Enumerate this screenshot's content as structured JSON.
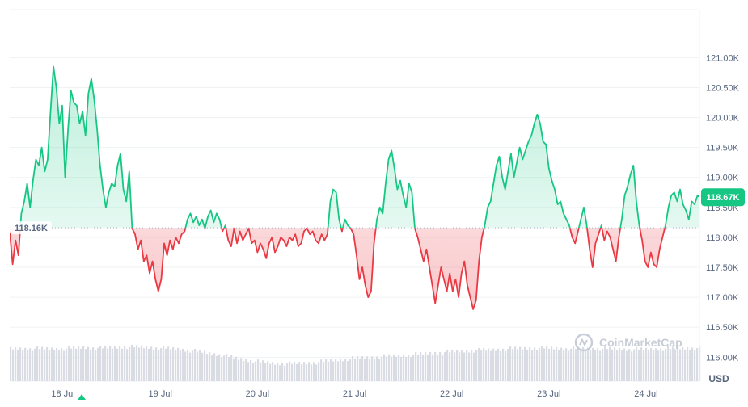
{
  "chart_data": {
    "type": "area",
    "currency": "USD",
    "baseline_value": 118.16,
    "baseline_label": "118.16K",
    "current_value": 118.67,
    "current_label": "118.67K",
    "ylim": [
      115.6,
      121.8
    ],
    "yticks": [
      {
        "value": 121.0,
        "label": "121.00K"
      },
      {
        "value": 120.5,
        "label": "120.50K"
      },
      {
        "value": 120.0,
        "label": "120.00K"
      },
      {
        "value": 119.5,
        "label": "119.50K"
      },
      {
        "value": 119.0,
        "label": "119.00K"
      },
      {
        "value": 118.5,
        "label": "118.50K"
      },
      {
        "value": 118.0,
        "label": "118.00K"
      },
      {
        "value": 117.5,
        "label": "117.50K"
      },
      {
        "value": 117.0,
        "label": "117.00K"
      },
      {
        "value": 116.5,
        "label": "116.50K"
      },
      {
        "value": 116.0,
        "label": "116.00K"
      }
    ],
    "xlim": [
      17.45,
      24.55
    ],
    "xticks": [
      {
        "value": 18,
        "label": "18 Jul"
      },
      {
        "value": 19,
        "label": "19 Jul"
      },
      {
        "value": 20,
        "label": "20 Jul"
      },
      {
        "value": 21,
        "label": "21 Jul"
      },
      {
        "value": 22,
        "label": "22 Jul"
      },
      {
        "value": 23,
        "label": "23 Jul"
      },
      {
        "value": 24,
        "label": "24 Jul"
      }
    ],
    "price_series": [
      [
        17.45,
        118.1
      ],
      [
        17.48,
        117.55
      ],
      [
        17.51,
        117.95
      ],
      [
        17.54,
        117.7
      ],
      [
        17.57,
        118.4
      ],
      [
        17.6,
        118.6
      ],
      [
        17.63,
        118.9
      ],
      [
        17.66,
        118.5
      ],
      [
        17.69,
        118.95
      ],
      [
        17.72,
        119.3
      ],
      [
        17.75,
        119.2
      ],
      [
        17.78,
        119.5
      ],
      [
        17.81,
        119.1
      ],
      [
        17.84,
        119.3
      ],
      [
        17.87,
        120.1
      ],
      [
        17.9,
        120.85
      ],
      [
        17.93,
        120.5
      ],
      [
        17.96,
        119.9
      ],
      [
        17.99,
        120.2
      ],
      [
        18.02,
        119.0
      ],
      [
        18.05,
        119.8
      ],
      [
        18.08,
        120.45
      ],
      [
        18.11,
        120.25
      ],
      [
        18.14,
        120.2
      ],
      [
        18.17,
        119.9
      ],
      [
        18.2,
        120.1
      ],
      [
        18.23,
        119.7
      ],
      [
        18.26,
        120.4
      ],
      [
        18.29,
        120.65
      ],
      [
        18.32,
        120.3
      ],
      [
        18.35,
        119.8
      ],
      [
        18.38,
        119.2
      ],
      [
        18.41,
        118.8
      ],
      [
        18.44,
        118.5
      ],
      [
        18.47,
        118.75
      ],
      [
        18.5,
        118.9
      ],
      [
        18.53,
        118.85
      ],
      [
        18.56,
        119.2
      ],
      [
        18.59,
        119.4
      ],
      [
        18.62,
        118.8
      ],
      [
        18.65,
        118.6
      ],
      [
        18.68,
        119.1
      ],
      [
        18.71,
        118.15
      ],
      [
        18.74,
        118.05
      ],
      [
        18.77,
        117.8
      ],
      [
        18.8,
        117.95
      ],
      [
        18.83,
        117.6
      ],
      [
        18.86,
        117.7
      ],
      [
        18.89,
        117.4
      ],
      [
        18.92,
        117.6
      ],
      [
        18.95,
        117.3
      ],
      [
        18.98,
        117.1
      ],
      [
        19.01,
        117.3
      ],
      [
        19.04,
        117.9
      ],
      [
        19.07,
        117.7
      ],
      [
        19.1,
        117.95
      ],
      [
        19.13,
        117.8
      ],
      [
        19.16,
        118.0
      ],
      [
        19.19,
        117.9
      ],
      [
        19.22,
        118.05
      ],
      [
        19.25,
        118.1
      ],
      [
        19.28,
        118.3
      ],
      [
        19.31,
        118.4
      ],
      [
        19.34,
        118.25
      ],
      [
        19.37,
        118.35
      ],
      [
        19.4,
        118.2
      ],
      [
        19.43,
        118.3
      ],
      [
        19.46,
        118.15
      ],
      [
        19.49,
        118.35
      ],
      [
        19.52,
        118.45
      ],
      [
        19.55,
        118.25
      ],
      [
        19.58,
        118.4
      ],
      [
        19.61,
        118.3
      ],
      [
        19.64,
        118.1
      ],
      [
        19.67,
        118.2
      ],
      [
        19.7,
        117.95
      ],
      [
        19.73,
        117.85
      ],
      [
        19.76,
        118.15
      ],
      [
        19.79,
        117.9
      ],
      [
        19.82,
        118.1
      ],
      [
        19.85,
        117.95
      ],
      [
        19.88,
        118.05
      ],
      [
        19.91,
        118.15
      ],
      [
        19.94,
        117.9
      ],
      [
        19.97,
        117.95
      ],
      [
        20.0,
        117.75
      ],
      [
        20.03,
        117.9
      ],
      [
        20.06,
        117.8
      ],
      [
        20.09,
        117.65
      ],
      [
        20.12,
        117.9
      ],
      [
        20.15,
        118.0
      ],
      [
        20.18,
        117.75
      ],
      [
        20.21,
        117.85
      ],
      [
        20.24,
        118.0
      ],
      [
        20.27,
        117.95
      ],
      [
        20.3,
        117.85
      ],
      [
        20.33,
        118.0
      ],
      [
        20.36,
        117.95
      ],
      [
        20.39,
        118.05
      ],
      [
        20.42,
        117.85
      ],
      [
        20.45,
        117.9
      ],
      [
        20.48,
        118.1
      ],
      [
        20.51,
        118.15
      ],
      [
        20.54,
        118.05
      ],
      [
        20.57,
        118.1
      ],
      [
        20.6,
        117.95
      ],
      [
        20.63,
        117.9
      ],
      [
        20.66,
        118.05
      ],
      [
        20.69,
        117.95
      ],
      [
        20.72,
        118.05
      ],
      [
        20.75,
        118.6
      ],
      [
        20.78,
        118.8
      ],
      [
        20.81,
        118.75
      ],
      [
        20.84,
        118.3
      ],
      [
        20.87,
        118.1
      ],
      [
        20.9,
        118.3
      ],
      [
        20.93,
        118.2
      ],
      [
        20.96,
        118.15
      ],
      [
        20.99,
        118.05
      ],
      [
        21.02,
        117.7
      ],
      [
        21.05,
        117.3
      ],
      [
        21.08,
        117.5
      ],
      [
        21.11,
        117.2
      ],
      [
        21.14,
        117.0
      ],
      [
        21.17,
        117.1
      ],
      [
        21.2,
        117.9
      ],
      [
        21.23,
        118.3
      ],
      [
        21.26,
        118.5
      ],
      [
        21.29,
        118.4
      ],
      [
        21.32,
        118.9
      ],
      [
        21.35,
        119.3
      ],
      [
        21.38,
        119.45
      ],
      [
        21.41,
        119.15
      ],
      [
        21.44,
        118.8
      ],
      [
        21.47,
        118.95
      ],
      [
        21.5,
        118.7
      ],
      [
        21.53,
        118.5
      ],
      [
        21.56,
        118.9
      ],
      [
        21.59,
        118.75
      ],
      [
        21.62,
        118.15
      ],
      [
        21.65,
        118.0
      ],
      [
        21.68,
        117.8
      ],
      [
        21.71,
        117.6
      ],
      [
        21.74,
        117.8
      ],
      [
        21.77,
        117.5
      ],
      [
        21.8,
        117.2
      ],
      [
        21.83,
        116.9
      ],
      [
        21.86,
        117.2
      ],
      [
        21.89,
        117.5
      ],
      [
        21.92,
        117.3
      ],
      [
        21.95,
        117.1
      ],
      [
        21.98,
        117.4
      ],
      [
        22.01,
        117.1
      ],
      [
        22.04,
        117.3
      ],
      [
        22.07,
        117.0
      ],
      [
        22.1,
        117.4
      ],
      [
        22.13,
        117.6
      ],
      [
        22.16,
        117.2
      ],
      [
        22.19,
        117.0
      ],
      [
        22.22,
        116.8
      ],
      [
        22.25,
        116.95
      ],
      [
        22.28,
        117.6
      ],
      [
        22.31,
        118.0
      ],
      [
        22.34,
        118.2
      ],
      [
        22.37,
        118.5
      ],
      [
        22.4,
        118.6
      ],
      [
        22.43,
        118.9
      ],
      [
        22.46,
        119.2
      ],
      [
        22.49,
        119.35
      ],
      [
        22.52,
        119.0
      ],
      [
        22.55,
        118.8
      ],
      [
        22.58,
        119.1
      ],
      [
        22.61,
        119.4
      ],
      [
        22.64,
        119.0
      ],
      [
        22.67,
        119.25
      ],
      [
        22.7,
        119.5
      ],
      [
        22.73,
        119.3
      ],
      [
        22.76,
        119.45
      ],
      [
        22.79,
        119.6
      ],
      [
        22.82,
        119.7
      ],
      [
        22.85,
        119.9
      ],
      [
        22.88,
        120.05
      ],
      [
        22.91,
        119.9
      ],
      [
        22.94,
        119.6
      ],
      [
        22.97,
        119.55
      ],
      [
        23.0,
        119.15
      ],
      [
        23.03,
        118.95
      ],
      [
        23.06,
        118.8
      ],
      [
        23.09,
        118.55
      ],
      [
        23.12,
        118.6
      ],
      [
        23.15,
        118.4
      ],
      [
        23.18,
        118.3
      ],
      [
        23.21,
        118.2
      ],
      [
        23.24,
        118.0
      ],
      [
        23.27,
        117.9
      ],
      [
        23.3,
        118.1
      ],
      [
        23.33,
        118.3
      ],
      [
        23.36,
        118.5
      ],
      [
        23.39,
        118.2
      ],
      [
        23.42,
        117.8
      ],
      [
        23.45,
        117.5
      ],
      [
        23.48,
        117.9
      ],
      [
        23.51,
        118.05
      ],
      [
        23.54,
        118.2
      ],
      [
        23.57,
        117.95
      ],
      [
        23.6,
        118.1
      ],
      [
        23.63,
        118.0
      ],
      [
        23.66,
        117.8
      ],
      [
        23.69,
        117.6
      ],
      [
        23.72,
        118.0
      ],
      [
        23.75,
        118.3
      ],
      [
        23.78,
        118.7
      ],
      [
        23.81,
        118.85
      ],
      [
        23.84,
        119.05
      ],
      [
        23.87,
        119.2
      ],
      [
        23.9,
        118.6
      ],
      [
        23.93,
        118.2
      ],
      [
        23.96,
        117.95
      ],
      [
        23.99,
        117.6
      ],
      [
        24.02,
        117.5
      ],
      [
        24.05,
        117.75
      ],
      [
        24.08,
        117.55
      ],
      [
        24.11,
        117.5
      ],
      [
        24.14,
        117.8
      ],
      [
        24.17,
        118.0
      ],
      [
        24.2,
        118.2
      ],
      [
        24.23,
        118.5
      ],
      [
        24.26,
        118.7
      ],
      [
        24.29,
        118.75
      ],
      [
        24.32,
        118.6
      ],
      [
        24.35,
        118.8
      ],
      [
        24.38,
        118.55
      ],
      [
        24.41,
        118.45
      ],
      [
        24.44,
        118.3
      ],
      [
        24.47,
        118.6
      ],
      [
        24.5,
        118.55
      ],
      [
        24.53,
        118.7
      ],
      [
        24.55,
        118.67
      ]
    ],
    "volume_series": [
      [
        17.45,
        0.55
      ],
      [
        17.6,
        0.55
      ],
      [
        17.8,
        0.55
      ],
      [
        18.0,
        0.55
      ],
      [
        18.2,
        0.57
      ],
      [
        18.4,
        0.56
      ],
      [
        18.6,
        0.58
      ],
      [
        18.8,
        0.58
      ],
      [
        19.0,
        0.56
      ],
      [
        19.2,
        0.54
      ],
      [
        19.4,
        0.5
      ],
      [
        19.6,
        0.45
      ],
      [
        19.8,
        0.38
      ],
      [
        20.0,
        0.33
      ],
      [
        20.2,
        0.3
      ],
      [
        20.4,
        0.3
      ],
      [
        20.6,
        0.32
      ],
      [
        20.8,
        0.36
      ],
      [
        21.0,
        0.39
      ],
      [
        21.2,
        0.41
      ],
      [
        21.4,
        0.43
      ],
      [
        21.6,
        0.45
      ],
      [
        21.8,
        0.48
      ],
      [
        22.0,
        0.5
      ],
      [
        22.2,
        0.52
      ],
      [
        22.4,
        0.53
      ],
      [
        22.6,
        0.55
      ],
      [
        22.8,
        0.56
      ],
      [
        23.0,
        0.56
      ],
      [
        23.2,
        0.55
      ],
      [
        23.4,
        0.55
      ],
      [
        23.6,
        0.55
      ],
      [
        23.8,
        0.54
      ],
      [
        24.0,
        0.54
      ],
      [
        24.2,
        0.55
      ],
      [
        24.4,
        0.56
      ],
      [
        24.55,
        0.56
      ]
    ],
    "colors": {
      "up_line": "#16c784",
      "up_fill": "#16c784",
      "down_line": "#ea3943",
      "down_fill": "#ea3943",
      "grid": "#eff2f5",
      "baseline": "#a6b0c3",
      "volume": "#d9dde3",
      "current_badge": "#16c784"
    },
    "watermark": "CoinMarketCap",
    "grid": true
  }
}
